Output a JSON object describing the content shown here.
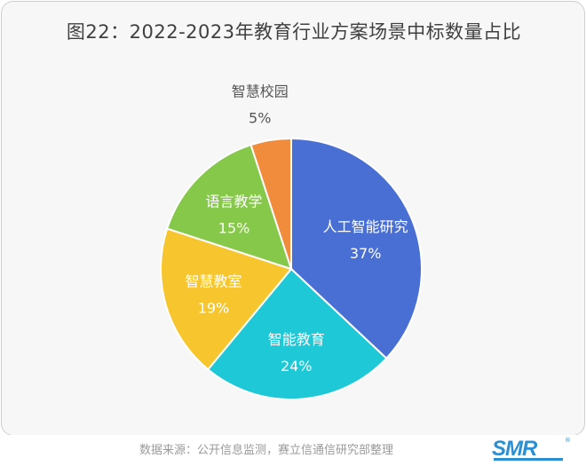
{
  "chart_data": {
    "type": "pie",
    "title": "图22：2022-2023年教育行业方案场景中标数量占比",
    "slices": [
      {
        "label": "人工智能研究",
        "value": 37,
        "value_label": "37%",
        "color": "#4a6fd4"
      },
      {
        "label": "智能教育",
        "value": 24,
        "value_label": "24%",
        "color": "#1ec8d6"
      },
      {
        "label": "智慧教室",
        "value": 19,
        "value_label": "19%",
        "color": "#f7c62f"
      },
      {
        "label": "语言教学",
        "value": 15,
        "value_label": "15%",
        "color": "#86c84a"
      },
      {
        "label": "智慧校园",
        "value": 5,
        "value_label": "5%",
        "color": "#f08c3c"
      }
    ],
    "start_angle_deg": 0,
    "direction": "clockwise"
  },
  "footer": {
    "source": "数据来源：公开信息监测，赛立信通信研究部整理",
    "logo_text": "SMR",
    "logo_mark": "®"
  }
}
